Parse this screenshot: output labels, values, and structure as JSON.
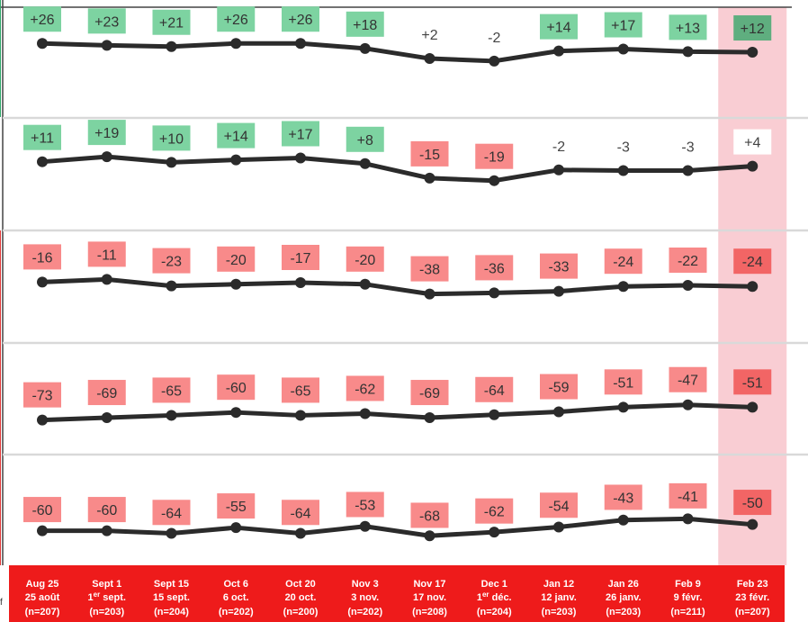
{
  "chart_data": {
    "type": "line",
    "categories": [
      {
        "en": "Aug 25",
        "fr": "25 août",
        "n": "(n=207)"
      },
      {
        "en": "Sept 1",
        "fr_pre": "1",
        "fr_sup": "er",
        "fr_post": " sept.",
        "n": "(n=203)"
      },
      {
        "en": "Sept 15",
        "fr": "15 sept.",
        "n": "(n=204)"
      },
      {
        "en": "Oct 6",
        "fr": "6 oct.",
        "n": "(n=202)"
      },
      {
        "en": "Oct 20",
        "fr": "20 oct.",
        "n": "(n=200)"
      },
      {
        "en": "Nov 3",
        "fr": "3 nov.",
        "n": "(n=202)"
      },
      {
        "en": "Nov 17",
        "fr": "17 nov.",
        "n": "(n=208)"
      },
      {
        "en": "Dec 1",
        "fr_pre": "1",
        "fr_sup": "er",
        "fr_post": " déc.",
        "n": "(n=204)"
      },
      {
        "en": "Jan 12",
        "fr": "12 janv.",
        "n": "(n=203)"
      },
      {
        "en": "Jan 26",
        "fr": "26 janv.",
        "n": "(n=203)"
      },
      {
        "en": "Feb 9",
        "fr": "9 févr.",
        "n": "(n=211)"
      },
      {
        "en": "Feb 23",
        "fr": "23 févr.",
        "n": "(n=207)"
      }
    ],
    "series": [
      {
        "values": [
          26,
          23,
          21,
          26,
          26,
          18,
          2,
          -2,
          14,
          17,
          13,
          12
        ],
        "labels": [
          "+26",
          "+23",
          "+21",
          "+26",
          "+26",
          "+18",
          "+2",
          "-2",
          "+14",
          "+17",
          "+13",
          "+12"
        ]
      },
      {
        "values": [
          11,
          19,
          10,
          14,
          17,
          8,
          -15,
          -19,
          -2,
          -3,
          -3,
          4
        ],
        "labels": [
          "+11",
          "+19",
          "+10",
          "+14",
          "+17",
          "+8",
          "-15",
          "-19",
          "-2",
          "-3",
          "-3",
          "+4"
        ]
      },
      {
        "values": [
          -16,
          -11,
          -23,
          -20,
          -17,
          -20,
          -38,
          -36,
          -33,
          -24,
          -22,
          -24
        ],
        "labels": [
          "-16",
          "-11",
          "-23",
          "-20",
          "-17",
          "-20",
          "-38",
          "-36",
          "-33",
          "-24",
          "-22",
          "-24"
        ]
      },
      {
        "values": [
          -73,
          -69,
          -65,
          -60,
          -65,
          -62,
          -69,
          -64,
          -59,
          -51,
          -47,
          -51
        ],
        "labels": [
          "-73",
          "-69",
          "-65",
          "-60",
          "-65",
          "-62",
          "-69",
          "-64",
          "-59",
          "-51",
          "-47",
          "-51"
        ]
      },
      {
        "values": [
          -60,
          -60,
          -64,
          -55,
          -64,
          -53,
          -68,
          -62,
          -54,
          -43,
          -41,
          -50
        ],
        "labels": [
          "-60",
          "-60",
          "-64",
          "-55",
          "-64",
          "-53",
          "-68",
          "-62",
          "-54",
          "-43",
          "-41",
          "-50"
        ]
      }
    ],
    "highlight_index": 11,
    "colors": {
      "positive": "#7dd3a1",
      "positive_latest": "#5fae7f",
      "negative": "#f88a8a",
      "negative_latest": "#f26565",
      "neutral": "#ffffff",
      "line": "#2b2b2b",
      "highlight_band": "#f9cdd3",
      "axis_band": "#ee1b1b",
      "divider": "#d9d9d9"
    },
    "grid": false,
    "legend": "none"
  },
  "footnote": "f"
}
